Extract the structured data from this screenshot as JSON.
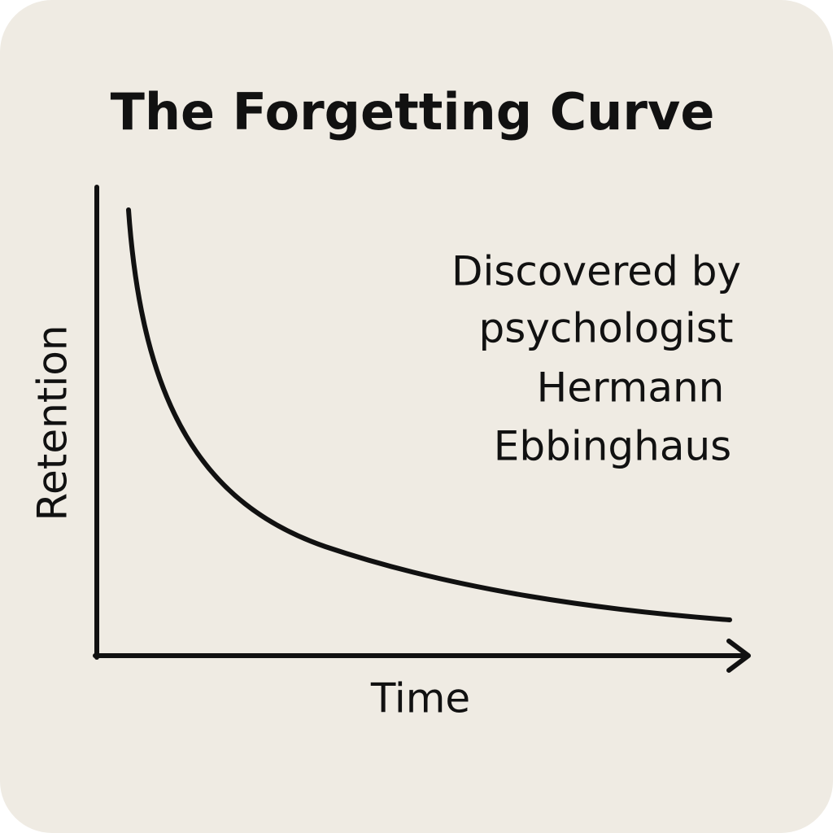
{
  "title": "The Forgetting Curve",
  "axes": {
    "y_label": "Retention",
    "x_label": "Time"
  },
  "annotation": {
    "lines": [
      "Discovered by",
      "psychologist",
      "Hermann",
      "Ebbinghaus"
    ]
  }
}
